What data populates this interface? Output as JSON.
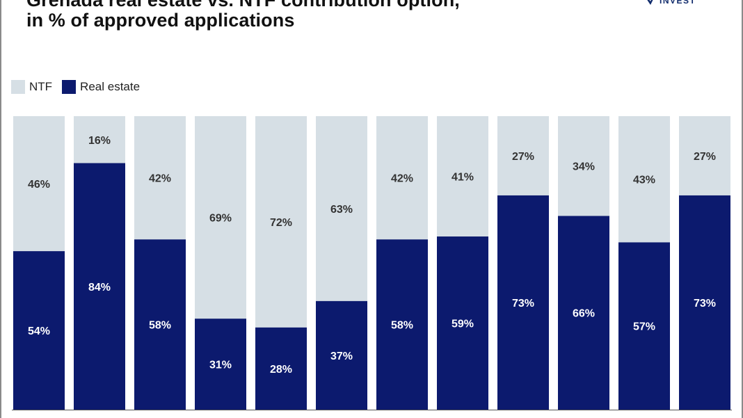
{
  "header": {
    "title_line1": "Grenada real estate vs. NTF contribution option,",
    "title_line2": "in % of approved applications"
  },
  "logo": {
    "text": "INVEST",
    "icon": "brand-mark-icon",
    "color": "#0f2a6b"
  },
  "colors": {
    "ntf": "#d6dfe5",
    "real_estate": "#0c1a6e",
    "label_dark": "#333333",
    "label_light": "#ffffff",
    "axis": "#555555"
  },
  "legend": {
    "position": "top-left",
    "items": [
      {
        "label": "NTF",
        "color": "#d6dfe5"
      },
      {
        "label": "Real estate",
        "color": "#0c1a6e"
      }
    ]
  },
  "chart_data": {
    "type": "bar",
    "stacked": true,
    "title": "Grenada real estate vs. NTF contribution option, in % of approved applications",
    "categories": [
      "",
      "",
      "",
      "",
      "",
      "",
      "",
      "",
      "",
      "",
      "",
      ""
    ],
    "ylim": [
      0,
      100
    ],
    "grid": false,
    "series": [
      {
        "name": "Real estate",
        "values": [
          54,
          84,
          58,
          31,
          28,
          37,
          58,
          59,
          73,
          66,
          57,
          73
        ],
        "labels": [
          "54%",
          "84%",
          "58%",
          "31%",
          "28%",
          "37%",
          "58%",
          "59%",
          "73%",
          "66%",
          "57%",
          "73%"
        ]
      },
      {
        "name": "NTF",
        "values": [
          46,
          16,
          42,
          69,
          72,
          63,
          42,
          41,
          27,
          34,
          43,
          27
        ],
        "labels": [
          "46%",
          "16%",
          "42%",
          "69%",
          "72%",
          "63%",
          "42%",
          "41%",
          "27%",
          "34%",
          "43%",
          "27%"
        ]
      }
    ]
  }
}
